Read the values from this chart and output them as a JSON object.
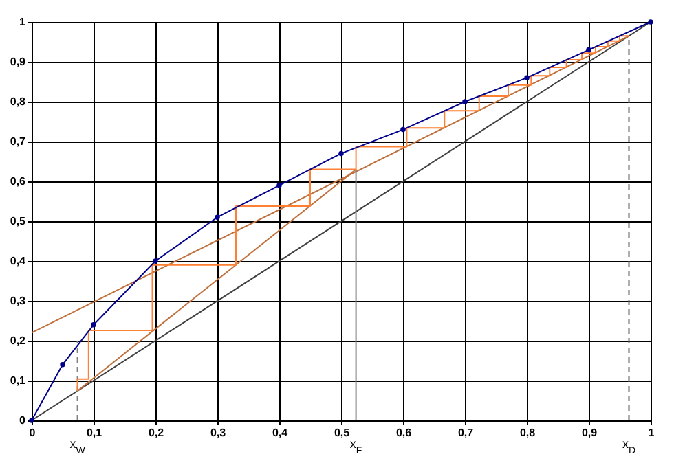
{
  "chart_data": {
    "type": "line",
    "xlim": [
      0,
      1
    ],
    "ylim": [
      0,
      1
    ],
    "xticks": [
      0,
      {
        "value": 0.1,
        "label": "0,1"
      },
      {
        "value": 0.2,
        "label": "0,2"
      },
      {
        "value": 0.3,
        "label": "0,3"
      },
      {
        "value": 0.4,
        "label": "0,4"
      },
      {
        "value": 0.5,
        "label": "0,5"
      },
      {
        "value": 0.6,
        "label": "0,6"
      },
      {
        "value": 0.7,
        "label": "0,7"
      },
      {
        "value": 0.8,
        "label": "0,8"
      },
      {
        "value": 0.9,
        "label": "0,9"
      },
      1
    ],
    "yticks": [
      0,
      {
        "value": 0.1,
        "label": "0,1"
      },
      {
        "value": 0.2,
        "label": "0,2"
      },
      {
        "value": 0.3,
        "label": "0,3"
      },
      {
        "value": 0.4,
        "label": "0,4"
      },
      {
        "value": 0.5,
        "label": "0,5"
      },
      {
        "value": 0.6,
        "label": "0,6"
      },
      {
        "value": 0.7,
        "label": "0,7"
      },
      {
        "value": 0.8,
        "label": "0,8"
      },
      {
        "value": 0.9,
        "label": "0,9"
      },
      1
    ],
    "grid": true,
    "series": [
      {
        "color": "#404040",
        "x": [
          0,
          1
        ],
        "values": [
          0,
          1
        ]
      },
      {
        "color": "#c0703c",
        "x": [
          0,
          0.965
        ],
        "values": [
          0.22,
          0.965
        ]
      },
      {
        "color": "#c0703c",
        "x": [
          0.074,
          0.524
        ],
        "values": [
          0.074,
          0.63
        ]
      },
      {
        "color": "#808080",
        "x": [
          0.524,
          0.524
        ],
        "values": [
          0,
          0.63
        ]
      },
      {
        "color": "#808080",
        "line_style": "dashed",
        "x": [
          0.074,
          0.074
        ],
        "values": [
          0,
          0.2
        ]
      },
      {
        "color": "#606060",
        "line_style": "dashed",
        "x": [
          0.965,
          0.965
        ],
        "values": [
          0,
          0.965
        ]
      },
      {
        "color": "#ff8033",
        "x": [
          0.965,
          0.95,
          0.95,
          0.931,
          0.931,
          0.911,
          0.911,
          0.889,
          0.889,
          0.864,
          0.864,
          0.837,
          0.837,
          0.807,
          0.807,
          0.77,
          0.77,
          0.723,
          0.723,
          0.667,
          0.667,
          0.606,
          0.606,
          0.524,
          0.524,
          0.45,
          0.45,
          0.33,
          0.33,
          0.195,
          0.195,
          0.092,
          0.092,
          0.074,
          0.074
        ],
        "values": [
          0.965,
          0.965,
          0.952,
          0.952,
          0.938,
          0.938,
          0.922,
          0.922,
          0.905,
          0.905,
          0.886,
          0.886,
          0.865,
          0.865,
          0.842,
          0.842,
          0.814,
          0.814,
          0.777,
          0.777,
          0.734,
          0.734,
          0.687,
          0.687,
          0.63,
          0.63,
          0.538,
          0.538,
          0.39,
          0.39,
          0.226,
          0.226,
          0.104,
          0.104,
          0.074
        ]
      },
      {
        "color": "#00008b",
        "marker": "circle",
        "x": [
          0,
          0.05,
          0.1,
          0.2,
          0.3,
          0.4,
          0.5,
          0.6,
          0.7,
          0.8,
          0.9,
          1
        ],
        "values": [
          0,
          0.14,
          0.24,
          0.4,
          0.51,
          0.59,
          0.67,
          0.73,
          0.8,
          0.86,
          0.93,
          1
        ]
      }
    ],
    "annotations": [
      {
        "text": "x$_{W}$",
        "x": 0.074,
        "y": 0
      },
      {
        "text": "x$_{F}$",
        "x": 0.524,
        "y": 0
      },
      {
        "text": "x$_{D}$",
        "x": 0.965,
        "y": 0
      }
    ]
  }
}
